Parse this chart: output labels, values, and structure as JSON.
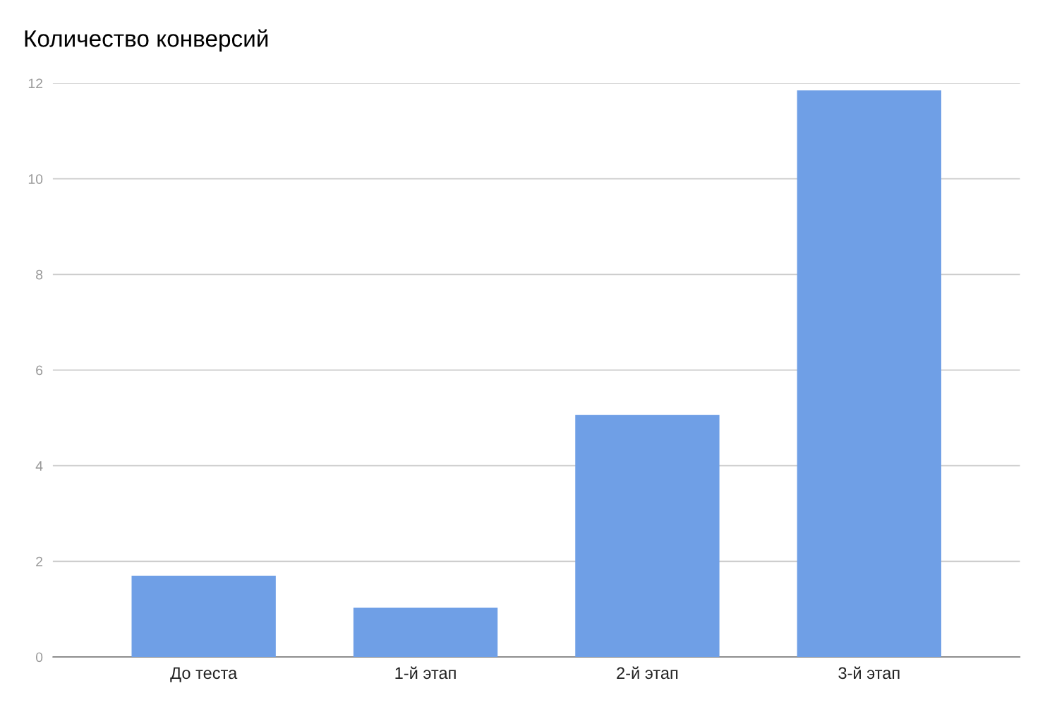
{
  "chart_data": {
    "type": "bar",
    "title": "Количество конверсий",
    "categories": [
      "До теста",
      "1-й этап",
      "2-й этап",
      "3-й этап"
    ],
    "values": [
      1.7,
      1.03,
      5.06,
      11.85
    ],
    "color": "#6f9fe6",
    "ylim": [
      0,
      12
    ],
    "yticks": [
      0,
      2,
      4,
      6,
      8,
      10,
      12
    ],
    "grid": "y",
    "legend": false
  }
}
